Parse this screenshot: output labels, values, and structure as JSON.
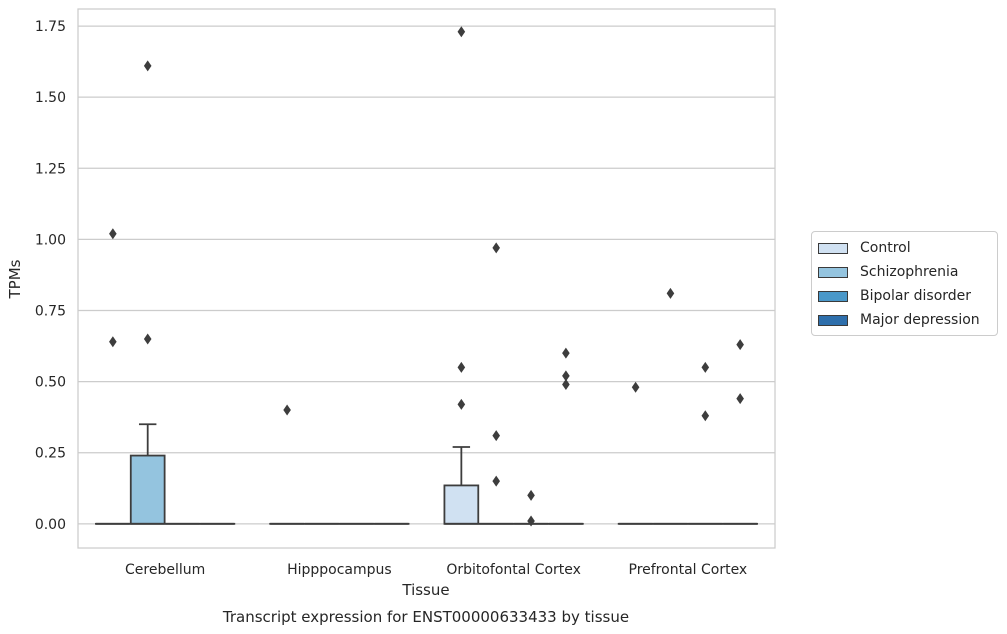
{
  "chart_data": {
    "type": "box",
    "title": "Transcript expression for ENST00000633433 by tissue",
    "xlabel": "Tissue",
    "ylabel": "TPMs",
    "ylim": [
      -0.085,
      1.81
    ],
    "yticks": [
      "0.00",
      "0.25",
      "0.50",
      "0.75",
      "1.00",
      "1.25",
      "1.50",
      "1.75"
    ],
    "grid": true,
    "legend_position": "right",
    "categories": [
      "Cerebellum",
      "Hipppocampus",
      "Orbitofontal Cortex",
      "Prefrontal Cortex"
    ],
    "hue_order": [
      "Control",
      "Schizophrenia",
      "Bipolar disorder",
      "Major depression"
    ],
    "colors": [
      "#d0e1f2",
      "#94c4df",
      "#4a98c9",
      "#2e6fac"
    ],
    "boxes": [
      {
        "category": "Cerebellum",
        "group": "Control",
        "q1": 0,
        "median": 0,
        "q3": 0,
        "whisker_low": 0,
        "whisker_high": 0,
        "outliers": [
          1.02,
          0.64
        ]
      },
      {
        "category": "Cerebellum",
        "group": "Schizophrenia",
        "q1": 0,
        "median": 0,
        "q3": 0.24,
        "whisker_low": 0,
        "whisker_high": 0.35,
        "outliers": [
          1.61,
          0.65
        ]
      },
      {
        "category": "Cerebellum",
        "group": "Bipolar disorder",
        "q1": 0,
        "median": 0,
        "q3": 0,
        "whisker_low": 0,
        "whisker_high": 0,
        "outliers": []
      },
      {
        "category": "Cerebellum",
        "group": "Major depression",
        "q1": 0,
        "median": 0,
        "q3": 0,
        "whisker_low": 0,
        "whisker_high": 0,
        "outliers": []
      },
      {
        "category": "Hipppocampus",
        "group": "Control",
        "q1": 0,
        "median": 0,
        "q3": 0,
        "whisker_low": 0,
        "whisker_high": 0,
        "outliers": [
          0.4
        ]
      },
      {
        "category": "Hipppocampus",
        "group": "Schizophrenia",
        "q1": 0,
        "median": 0,
        "q3": 0,
        "whisker_low": 0,
        "whisker_high": 0,
        "outliers": []
      },
      {
        "category": "Hipppocampus",
        "group": "Bipolar disorder",
        "q1": 0,
        "median": 0,
        "q3": 0,
        "whisker_low": 0,
        "whisker_high": 0,
        "outliers": []
      },
      {
        "category": "Hipppocampus",
        "group": "Major depression",
        "q1": 0,
        "median": 0,
        "q3": 0,
        "whisker_low": 0,
        "whisker_high": 0,
        "outliers": []
      },
      {
        "category": "Orbitofontal Cortex",
        "group": "Control",
        "q1": 0,
        "median": 0,
        "q3": 0.135,
        "whisker_low": 0,
        "whisker_high": 0.27,
        "outliers": [
          1.73,
          0.55,
          0.42
        ]
      },
      {
        "category": "Orbitofontal Cortex",
        "group": "Schizophrenia",
        "q1": 0,
        "median": 0,
        "q3": 0,
        "whisker_low": 0,
        "whisker_high": 0,
        "outliers": [
          0.97,
          0.31,
          0.15
        ]
      },
      {
        "category": "Orbitofontal Cortex",
        "group": "Bipolar disorder",
        "q1": 0,
        "median": 0,
        "q3": 0,
        "whisker_low": 0,
        "whisker_high": 0,
        "outliers": [
          0.1,
          0.01
        ]
      },
      {
        "category": "Orbitofontal Cortex",
        "group": "Major depression",
        "q1": 0,
        "median": 0,
        "q3": 0,
        "whisker_low": 0,
        "whisker_high": 0,
        "outliers": [
          0.6,
          0.52,
          0.49
        ]
      },
      {
        "category": "Prefrontal Cortex",
        "group": "Control",
        "q1": 0,
        "median": 0,
        "q3": 0,
        "whisker_low": 0,
        "whisker_high": 0,
        "outliers": [
          0.48
        ]
      },
      {
        "category": "Prefrontal Cortex",
        "group": "Schizophrenia",
        "q1": 0,
        "median": 0,
        "q3": 0,
        "whisker_low": 0,
        "whisker_high": 0,
        "outliers": [
          0.81
        ]
      },
      {
        "category": "Prefrontal Cortex",
        "group": "Bipolar disorder",
        "q1": 0,
        "median": 0,
        "q3": 0,
        "whisker_low": 0,
        "whisker_high": 0,
        "outliers": [
          0.55,
          0.38
        ]
      },
      {
        "category": "Prefrontal Cortex",
        "group": "Major depression",
        "q1": 0,
        "median": 0,
        "q3": 0,
        "whisker_low": 0,
        "whisker_high": 0,
        "outliers": [
          0.63,
          0.44
        ]
      }
    ]
  }
}
